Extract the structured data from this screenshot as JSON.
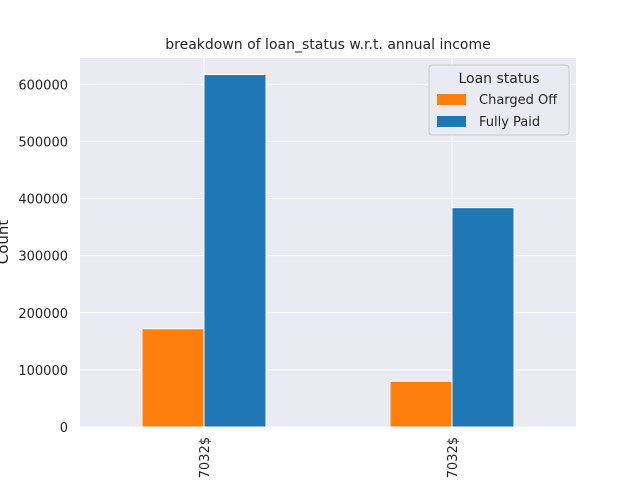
{
  "chart_data": {
    "type": "bar",
    "title": "breakdown of loan_status w.r.t. annual income",
    "xlabel": "",
    "ylabel": "Count",
    "categories": [
      "7032$",
      "7032$"
    ],
    "series": [
      {
        "name": "Charged Off",
        "values": [
          172000,
          80000
        ],
        "color": "#ff7f0e"
      },
      {
        "name": "Fully Paid",
        "values": [
          617000,
          384000
        ],
        "color": "#1f77b4"
      }
    ],
    "ylim": [
      0,
      646000
    ],
    "yticks": [
      0,
      100000,
      200000,
      300000,
      400000,
      500000,
      600000
    ],
    "ytick_labels": [
      "0",
      "100000",
      "200000",
      "300000",
      "400000",
      "500000",
      "600000"
    ],
    "legend": {
      "title": "Loan status",
      "placement": "top-right"
    },
    "grid": true,
    "background": "#eaeaf2",
    "grid_color": "#ffffff"
  }
}
